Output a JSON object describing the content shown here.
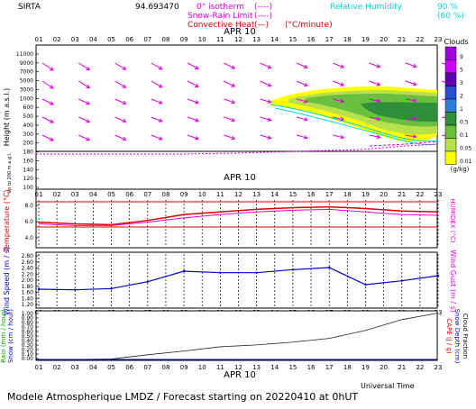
{
  "header": {
    "station": "SIRTA",
    "coords": "94.693470",
    "legend_isotherm": "0° isotherm",
    "legend_isotherm_sym": "(----)",
    "legend_snow_rain": "Snow-Rain Limit",
    "legend_snow_rain_sym": "(----)",
    "legend_convective": "Convective Heat",
    "legend_convective_sym": "(—)",
    "legend_convective_unit": "(°C/minute)",
    "legend_rh_label": "Relative Humidity",
    "legend_rh_90": "90 %",
    "legend_rh_60": "(60 %)"
  },
  "colors": {
    "magenta": "#e000e0",
    "red": "#e00000",
    "blue": "#0000cc",
    "cyan": "#00d8d8",
    "purple": "#5a0080"
  },
  "hours": [
    "01",
    "02",
    "03",
    "04",
    "05",
    "06",
    "07",
    "08",
    "09",
    "10",
    "11",
    "12",
    "13",
    "14",
    "15",
    "16",
    "17",
    "18",
    "19",
    "20",
    "21",
    "22",
    "23"
  ],
  "date_label": "APR 10",
  "panel1": {
    "ylabel": "Height (m a.s.l.)",
    "ylabel2": "Up to 200 m a.g.l.",
    "yticks": [
      "11000",
      "9000",
      "7000",
      "5000",
      "3000",
      "1000",
      "600",
      "500",
      "400",
      "300",
      "200",
      "180",
      "160",
      "140",
      "120",
      "100"
    ],
    "cloud_title": "Clouds",
    "cloud_unit": "(g/kg)",
    "cloud_scale": [
      "9",
      "5",
      "3",
      "2",
      "1",
      "0.5",
      "0.1",
      "0.05",
      "0.01"
    ],
    "cloud_colors": [
      "#a000e0",
      "#cc00ff",
      "#6000b0",
      "#2a4fd0",
      "#2f7fd8",
      "#2f8f3a",
      "#6abf3e",
      "#b8e04a",
      "#ffff00"
    ]
  },
  "panel2": {
    "ylabel": "Temperature (°C)",
    "ylabel_right": "HUMIDEX (°C)",
    "yticks": [
      "8.0",
      "6.0",
      "4.0"
    ]
  },
  "panel3": {
    "ylabel": "Wind Speed (m / s)",
    "ylabel_right": "Wind Gust (m / s)",
    "yticks": [
      "2.80",
      "2.60",
      "2.40",
      "2.20",
      "2.00",
      "1.80",
      "1.60",
      "1.40",
      "1.20"
    ]
  },
  "panel4": {
    "ylabel": "Rain (mm / hour)",
    "ylabel2": "Snow (cm / hour)",
    "ylabel_right": "CAPE (J / g)",
    "ylabel_right2": "Snow Depth (cm)",
    "ylabel_right3": "Cloud Fraction",
    "yticks": [
      "1.00",
      "0.90",
      "0.80",
      "0.70",
      "0.60",
      "0.50",
      "0.40",
      "0.30",
      "0.20",
      "0.10",
      "0.00"
    ]
  },
  "footer": {
    "universal_time": "Universal Time",
    "caption": "Modele Atmospherique LMDZ / Forecast starting on 20220410 at 0hUT"
  },
  "chart_data": [
    {
      "type": "line",
      "name": "temperature",
      "x": [
        "01",
        "03",
        "05",
        "07",
        "09",
        "11",
        "13",
        "15",
        "17",
        "19",
        "21",
        "23"
      ],
      "series": [
        {
          "values": [
            6.4,
            6.2,
            6.1,
            6.6,
            7.3,
            7.6,
            7.9,
            8.1,
            8.2,
            8.0,
            7.7,
            7.6
          ]
        },
        {
          "values": [
            6.2,
            6.0,
            6.0,
            6.4,
            6.9,
            7.3,
            7.6,
            7.8,
            7.9,
            7.6,
            7.3,
            7.2
          ]
        }
      ],
      "ylim": [
        3.5,
        9.0
      ]
    },
    {
      "type": "line",
      "name": "wind_speed",
      "x": [
        "01",
        "03",
        "05",
        "07",
        "09",
        "11",
        "13",
        "15",
        "17",
        "19",
        "21",
        "23"
      ],
      "values": [
        1.7,
        1.68,
        1.72,
        1.95,
        2.3,
        2.25,
        2.25,
        2.35,
        2.42,
        1.85,
        1.98,
        2.15
      ],
      "ylim": [
        1.1,
        2.9
      ]
    },
    {
      "type": "area",
      "name": "cloud_fraction",
      "x": [
        "01",
        "03",
        "05",
        "07",
        "09",
        "11",
        "13",
        "15",
        "17",
        "19",
        "21",
        "23"
      ],
      "values": [
        0.0,
        0.0,
        0.01,
        0.1,
        0.18,
        0.27,
        0.31,
        0.37,
        0.45,
        0.62,
        0.85,
        0.99
      ],
      "ylim": [
        0,
        1
      ]
    }
  ]
}
